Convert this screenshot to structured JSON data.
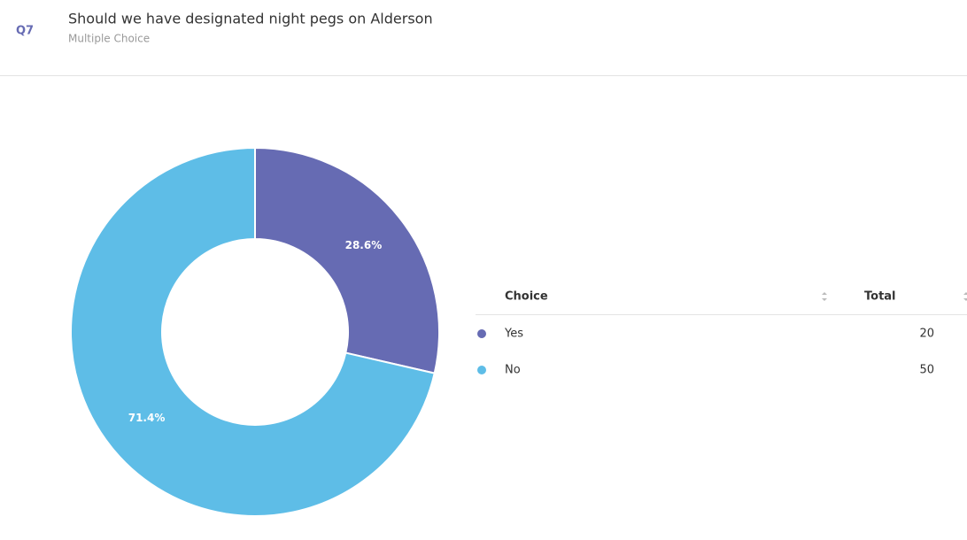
{
  "header": {
    "question_number": "Q7",
    "title": "Should we have designated night pegs on Alderson",
    "subtitle": "Multiple Choice"
  },
  "chart_data": {
    "type": "donut",
    "values": [
      28.6,
      71.4
    ],
    "value_labels": [
      "28.6%",
      "71.4%"
    ],
    "colors": [
      "#666bb3",
      "#5ebde7"
    ]
  },
  "table": {
    "columns": [
      "Choice",
      "Total"
    ],
    "rows": [
      [
        "Yes",
        20
      ],
      [
        "No",
        50
      ]
    ]
  }
}
